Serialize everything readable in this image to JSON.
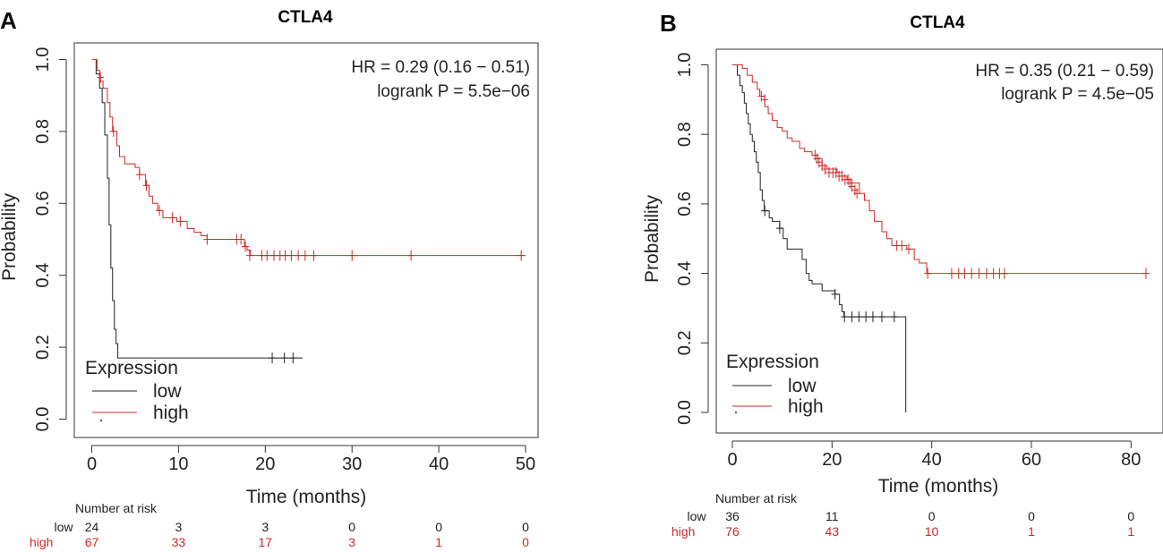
{
  "colors": {
    "low": "#222222",
    "high": "#d0282b",
    "axis": "#333333"
  },
  "legend_title": "Expression",
  "risk_title": "Number at risk",
  "chart_data": [
    {
      "type": "line",
      "panel_label": "A",
      "title": "CTLA4",
      "xlabel": "Time (months)",
      "ylabel": "Probability",
      "xlim": [
        0,
        50
      ],
      "ylim": [
        0,
        1
      ],
      "xticks": [
        0,
        10,
        20,
        30,
        40,
        50
      ],
      "yticks": [
        0.0,
        0.2,
        0.4,
        0.6,
        0.8,
        1.0
      ],
      "xtick_labels": [
        "0",
        "10",
        "20",
        "30",
        "40",
        "50"
      ],
      "ytick_labels": [
        "0.0",
        "0.2",
        "0.4",
        "0.6",
        "0.8",
        "1.0"
      ],
      "annotation": [
        "HR = 0.29 (0.16 − 0.51)",
        "logrank P = 5.5e−06"
      ],
      "legend": [
        "low",
        "high"
      ],
      "series": [
        {
          "name": "low",
          "steps": [
            [
              0,
              1.0
            ],
            [
              0.5,
              0.96
            ],
            [
              0.9,
              0.92
            ],
            [
              1.2,
              0.88
            ],
            [
              1.5,
              0.79
            ],
            [
              1.8,
              0.67
            ],
            [
              2.0,
              0.54
            ],
            [
              2.2,
              0.42
            ],
            [
              2.4,
              0.33
            ],
            [
              2.6,
              0.25
            ],
            [
              2.8,
              0.21
            ],
            [
              3.0,
              0.17
            ]
          ],
          "end_x": 24.3,
          "censors": [
            [
              20.8,
              0.17
            ],
            [
              22.2,
              0.17
            ],
            [
              23.2,
              0.17
            ]
          ]
        },
        {
          "name": "high",
          "steps": [
            [
              0,
              1.0
            ],
            [
              0.6,
              0.97
            ],
            [
              0.9,
              0.94
            ],
            [
              1.3,
              0.92
            ],
            [
              1.8,
              0.88
            ],
            [
              2.1,
              0.84
            ],
            [
              2.4,
              0.8
            ],
            [
              2.9,
              0.76
            ],
            [
              3.2,
              0.73
            ],
            [
              3.8,
              0.71
            ],
            [
              5.0,
              0.7
            ],
            [
              5.5,
              0.68
            ],
            [
              6.2,
              0.65
            ],
            [
              6.6,
              0.62
            ],
            [
              7.0,
              0.6
            ],
            [
              7.6,
              0.58
            ],
            [
              8.2,
              0.56
            ],
            [
              9.8,
              0.55
            ],
            [
              11.0,
              0.53
            ],
            [
              11.8,
              0.52
            ],
            [
              12.6,
              0.51
            ],
            [
              13.3,
              0.5
            ],
            [
              17.6,
              0.48
            ],
            [
              17.9,
              0.47
            ],
            [
              18.3,
              0.455
            ]
          ],
          "end_x": 50,
          "censors": [
            [
              1.0,
              0.95
            ],
            [
              2.5,
              0.8
            ],
            [
              5.5,
              0.68
            ],
            [
              6.3,
              0.65
            ],
            [
              7.8,
              0.58
            ],
            [
              9.3,
              0.56
            ],
            [
              10.2,
              0.55
            ],
            [
              13.3,
              0.5
            ],
            [
              16.7,
              0.5
            ],
            [
              17.2,
              0.5
            ],
            [
              17.7,
              0.48
            ],
            [
              18.2,
              0.455
            ],
            [
              19.6,
              0.455
            ],
            [
              20.2,
              0.455
            ],
            [
              21.0,
              0.455
            ],
            [
              21.7,
              0.455
            ],
            [
              22.3,
              0.455
            ],
            [
              23.0,
              0.455
            ],
            [
              23.8,
              0.455
            ],
            [
              24.6,
              0.455
            ],
            [
              25.6,
              0.455
            ],
            [
              30.0,
              0.455
            ],
            [
              36.8,
              0.455
            ],
            [
              49.5,
              0.455
            ]
          ]
        }
      ],
      "risk_times": [
        0,
        10,
        20,
        30,
        40,
        50
      ],
      "risk": {
        "low": [
          "24",
          "3",
          "3",
          "0",
          "0",
          "0"
        ],
        "high": [
          "67",
          "33",
          "17",
          "3",
          "1",
          "0"
        ]
      }
    },
    {
      "type": "line",
      "panel_label": "B",
      "title": "CTLA4",
      "xlabel": "Time (months)",
      "ylabel": "Probability",
      "xlim": [
        0,
        83
      ],
      "ylim": [
        0,
        1
      ],
      "xticks": [
        0,
        20,
        40,
        60,
        80
      ],
      "yticks": [
        0.0,
        0.2,
        0.4,
        0.6,
        0.8,
        1.0
      ],
      "xtick_labels": [
        "0",
        "20",
        "40",
        "60",
        "80"
      ],
      "ytick_labels": [
        "0.0",
        "0.2",
        "0.4",
        "0.6",
        "0.8",
        "1.0"
      ],
      "annotation": [
        "HR = 0.35 (0.21 − 0.59)",
        "logrank P = 4.5e−05"
      ],
      "legend": [
        "low",
        "high"
      ],
      "series": [
        {
          "name": "low",
          "steps": [
            [
              0,
              1.0
            ],
            [
              1.0,
              0.97
            ],
            [
              1.5,
              0.94
            ],
            [
              2.0,
              0.92
            ],
            [
              2.4,
              0.89
            ],
            [
              2.8,
              0.86
            ],
            [
              3.2,
              0.83
            ],
            [
              3.6,
              0.8
            ],
            [
              4.0,
              0.78
            ],
            [
              4.4,
              0.75
            ],
            [
              4.8,
              0.72
            ],
            [
              5.2,
              0.69
            ],
            [
              5.6,
              0.64
            ],
            [
              6.0,
              0.61
            ],
            [
              6.4,
              0.58
            ],
            [
              7.4,
              0.56
            ],
            [
              8.0,
              0.55
            ],
            [
              9.5,
              0.53
            ],
            [
              10.2,
              0.5
            ],
            [
              11.0,
              0.47
            ],
            [
              14.0,
              0.44
            ],
            [
              14.8,
              0.4
            ],
            [
              15.4,
              0.38
            ],
            [
              16.0,
              0.37
            ],
            [
              18.0,
              0.35
            ],
            [
              20.6,
              0.34
            ],
            [
              21.5,
              0.31
            ],
            [
              22.0,
              0.29
            ],
            [
              22.4,
              0.275
            ],
            [
              34.8,
              0.0
            ]
          ],
          "end_x": 34.8,
          "censors": [
            [
              6.5,
              0.58
            ],
            [
              9.5,
              0.53
            ],
            [
              20.6,
              0.34
            ],
            [
              22.5,
              0.275
            ],
            [
              24.0,
              0.275
            ],
            [
              25.4,
              0.275
            ],
            [
              26.8,
              0.275
            ],
            [
              28.2,
              0.275
            ],
            [
              30.0,
              0.275
            ],
            [
              32.5,
              0.275
            ]
          ]
        },
        {
          "name": "high",
          "steps": [
            [
              0,
              1.0
            ],
            [
              2.0,
              0.99
            ],
            [
              3.0,
              0.97
            ],
            [
              4.0,
              0.95
            ],
            [
              5.0,
              0.93
            ],
            [
              5.5,
              0.91
            ],
            [
              6.5,
              0.88
            ],
            [
              7.2,
              0.86
            ],
            [
              8.0,
              0.84
            ],
            [
              9.0,
              0.82
            ],
            [
              10.0,
              0.81
            ],
            [
              11.0,
              0.79
            ],
            [
              12.0,
              0.78
            ],
            [
              13.5,
              0.76
            ],
            [
              14.5,
              0.75
            ],
            [
              16.0,
              0.74
            ],
            [
              17.0,
              0.73
            ],
            [
              18.0,
              0.71
            ],
            [
              19.0,
              0.7
            ],
            [
              21.0,
              0.69
            ],
            [
              22.0,
              0.68
            ],
            [
              23.0,
              0.67
            ],
            [
              24.0,
              0.66
            ],
            [
              25.5,
              0.63
            ],
            [
              26.5,
              0.61
            ],
            [
              27.5,
              0.58
            ],
            [
              28.5,
              0.55
            ],
            [
              30.0,
              0.52
            ],
            [
              31.0,
              0.5
            ],
            [
              32.0,
              0.48
            ],
            [
              35.0,
              0.47
            ],
            [
              36.5,
              0.44
            ],
            [
              37.5,
              0.43
            ],
            [
              39.0,
              0.4
            ]
          ],
          "end_x": 83,
          "censors": [
            [
              5.8,
              0.91
            ],
            [
              6.5,
              0.9
            ],
            [
              16.6,
              0.74
            ],
            [
              17.0,
              0.73
            ],
            [
              17.4,
              0.72
            ],
            [
              18.0,
              0.71
            ],
            [
              18.6,
              0.7
            ],
            [
              19.4,
              0.69
            ],
            [
              20.2,
              0.69
            ],
            [
              20.8,
              0.69
            ],
            [
              21.4,
              0.68
            ],
            [
              22.0,
              0.68
            ],
            [
              22.6,
              0.67
            ],
            [
              23.2,
              0.67
            ],
            [
              23.6,
              0.66
            ],
            [
              24.0,
              0.65
            ],
            [
              24.6,
              0.64
            ],
            [
              25.0,
              0.63
            ],
            [
              33.0,
              0.48
            ],
            [
              34.0,
              0.48
            ],
            [
              35.4,
              0.47
            ],
            [
              39.2,
              0.4
            ],
            [
              44.0,
              0.4
            ],
            [
              45.4,
              0.4
            ],
            [
              46.6,
              0.4
            ],
            [
              48.0,
              0.4
            ],
            [
              49.5,
              0.4
            ],
            [
              51.0,
              0.4
            ],
            [
              52.4,
              0.4
            ],
            [
              53.6,
              0.4
            ],
            [
              54.6,
              0.4
            ],
            [
              83.0,
              0.4
            ]
          ]
        }
      ],
      "risk_times": [
        0,
        20,
        40,
        60,
        80
      ],
      "risk": {
        "low": [
          "36",
          "11",
          "0",
          "0",
          "0"
        ],
        "high": [
          "76",
          "43",
          "10",
          "1",
          "1"
        ]
      }
    }
  ]
}
